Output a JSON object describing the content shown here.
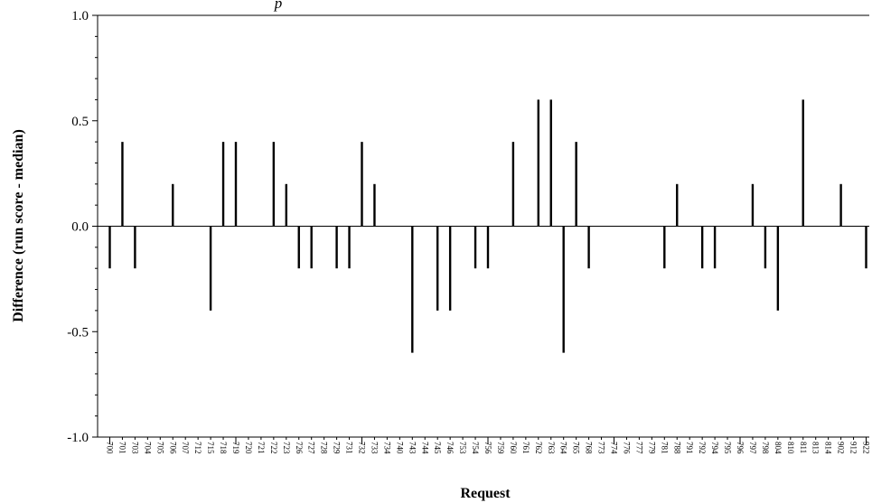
{
  "chart_data": {
    "type": "bar",
    "title": "p",
    "xlabel": "Request",
    "ylabel": "Difference (run score - median)",
    "ylim": [
      -1.0,
      1.0
    ],
    "yticks": [
      "1.0",
      "0.5",
      "0.0",
      "-0.5",
      "-1.0"
    ],
    "ytick_values": [
      1.0,
      0.5,
      0.0,
      -0.5,
      -1.0
    ],
    "grid": false,
    "categories": [
      "700",
      "701",
      "703",
      "704",
      "705",
      "706",
      "707",
      "712",
      "715",
      "718",
      "719",
      "720",
      "721",
      "722",
      "723",
      "726",
      "727",
      "728",
      "729",
      "731",
      "732",
      "733",
      "734",
      "740",
      "743",
      "744",
      "745",
      "746",
      "753",
      "754",
      "756",
      "759",
      "760",
      "761",
      "762",
      "763",
      "764",
      "765",
      "768",
      "773",
      "774",
      "776",
      "777",
      "779",
      "781",
      "788",
      "791",
      "792",
      "794",
      "795",
      "796",
      "797",
      "798",
      "804",
      "810",
      "811",
      "813",
      "814",
      "902",
      "912",
      "922"
    ],
    "values": [
      -0.2,
      0.4,
      -0.2,
      0,
      0,
      0.2,
      0,
      0,
      -0.4,
      0.4,
      0.4,
      0,
      0,
      0.4,
      0.2,
      -0.2,
      -0.2,
      0,
      -0.2,
      -0.2,
      0.4,
      0.2,
      0,
      0,
      -0.6,
      0,
      -0.4,
      -0.4,
      0,
      -0.2,
      -0.2,
      0,
      0.4,
      0,
      0.6,
      0.6,
      -0.6,
      0.4,
      -0.2,
      0,
      0,
      0,
      0,
      0,
      -0.2,
      0.2,
      0,
      -0.2,
      -0.2,
      0,
      0,
      0.2,
      -0.2,
      -0.4,
      0,
      0.6,
      0,
      0,
      0.2,
      0,
      -0.2
    ]
  }
}
